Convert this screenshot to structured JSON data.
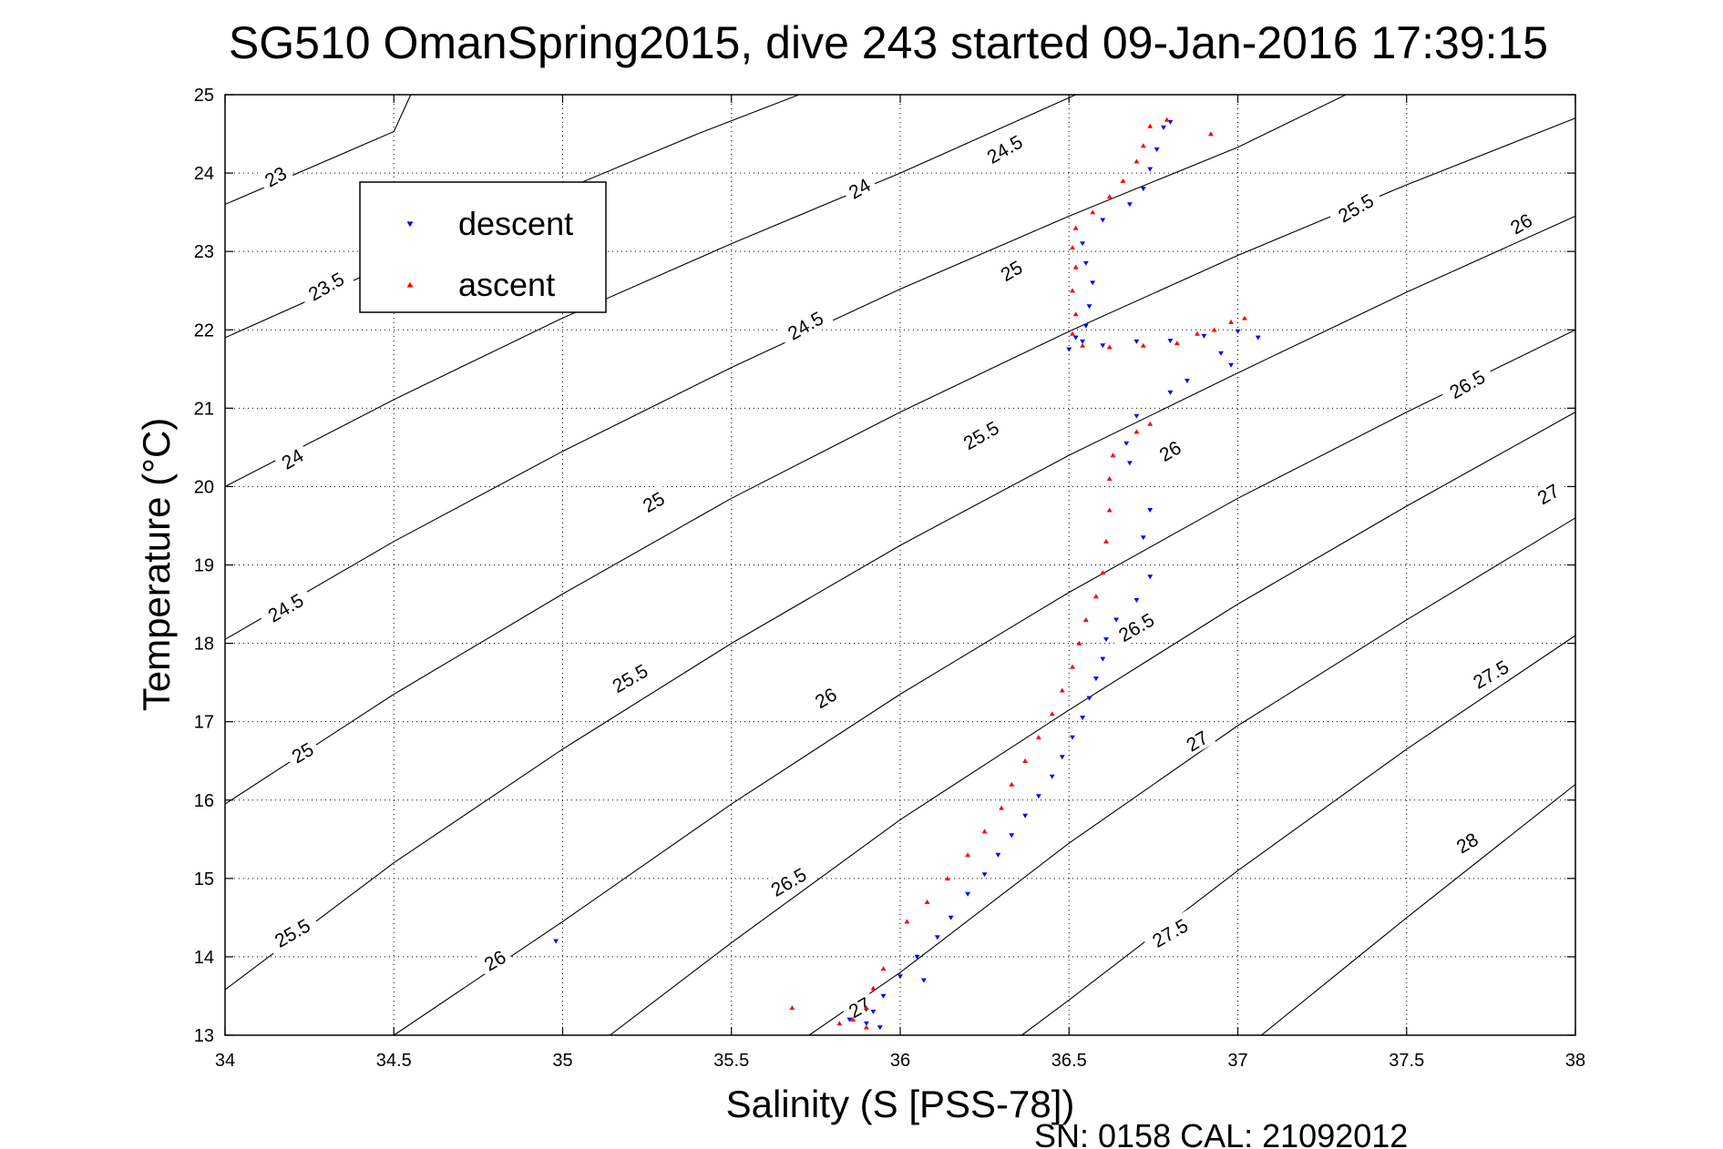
{
  "chart_data": {
    "type": "scatter",
    "title": "SG510 OmanSpring2015, dive 243 started 09-Jan-2016 17:39:15",
    "xlabel": "Salinity (S [PSS-78])",
    "ylabel": "Temperature (°C)",
    "footer": "SN: 0158  CAL: 21092012",
    "xlim": [
      34,
      38
    ],
    "ylim": [
      13,
      25
    ],
    "xticks": [
      34,
      34.5,
      35,
      35.5,
      36,
      36.5,
      37,
      37.5,
      38
    ],
    "xtick_labels": [
      "34",
      "34.5",
      "35",
      "35.5",
      "36",
      "36.5",
      "37",
      "37.5",
      "38"
    ],
    "yticks": [
      13,
      14,
      15,
      16,
      17,
      18,
      19,
      20,
      21,
      22,
      23,
      24,
      25
    ],
    "ytick_labels": [
      "13",
      "14",
      "15",
      "16",
      "17",
      "18",
      "19",
      "20",
      "21",
      "22",
      "23",
      "24",
      "25"
    ],
    "grid": true,
    "legend_position": "top-left",
    "legend": [
      {
        "label": "descent",
        "color": "#0000ff",
        "marker": "triangle-down"
      },
      {
        "label": "ascent",
        "color": "#ff0000",
        "marker": "triangle-up"
      }
    ],
    "density_contours": {
      "color": "#000000",
      "levels": [
        {
          "level": "23",
          "points": [
            [
              34.0,
              23.6
            ],
            [
              34.5,
              24.53
            ],
            [
              34.55,
              25.0
            ]
          ]
        },
        {
          "level": "23.5",
          "points": [
            [
              34.0,
              21.9
            ],
            [
              34.5,
              22.86
            ],
            [
              35.0,
              23.78
            ],
            [
              35.4,
              24.5
            ],
            [
              35.7,
              25.0
            ]
          ]
        },
        {
          "level": "24",
          "points": [
            [
              34.0,
              20.0
            ],
            [
              34.5,
              21.11
            ],
            [
              35.0,
              22.15
            ],
            [
              35.5,
              23.1
            ],
            [
              36.0,
              24.0
            ],
            [
              36.52,
              25.0
            ]
          ]
        },
        {
          "level": "24.5",
          "points": [
            [
              34.0,
              18.05
            ],
            [
              34.5,
              19.3
            ],
            [
              35.0,
              20.45
            ],
            [
              35.5,
              21.52
            ],
            [
              36.0,
              22.52
            ],
            [
              36.5,
              23.45
            ],
            [
              37.0,
              24.33
            ],
            [
              37.32,
              25.0
            ]
          ]
        },
        {
          "level": "25",
          "points": [
            [
              34.0,
              15.95
            ],
            [
              34.5,
              17.35
            ],
            [
              35.0,
              18.63
            ],
            [
              35.5,
              19.85
            ],
            [
              36.0,
              20.95
            ],
            [
              36.5,
              21.98
            ],
            [
              37.0,
              22.95
            ],
            [
              37.5,
              23.85
            ],
            [
              38.0,
              24.7
            ]
          ]
        },
        {
          "level": "25.5",
          "points": [
            [
              34.0,
              13.58
            ],
            [
              34.5,
              15.2
            ],
            [
              35.0,
              16.65
            ],
            [
              35.5,
              18.0
            ],
            [
              36.0,
              19.25
            ],
            [
              36.5,
              20.4
            ],
            [
              37.0,
              21.45
            ],
            [
              37.5,
              22.48
            ],
            [
              38.0,
              23.45
            ]
          ]
        },
        {
          "level": "26",
          "points": [
            [
              34.5,
              13.0
            ],
            [
              35.0,
              14.45
            ],
            [
              35.5,
              15.95
            ],
            [
              36.0,
              17.35
            ],
            [
              36.5,
              18.65
            ],
            [
              37.0,
              19.85
            ],
            [
              37.5,
              20.95
            ],
            [
              38.0,
              22.0
            ]
          ]
        },
        {
          "level": "26.5",
          "points": [
            [
              35.14,
              13.0
            ],
            [
              35.5,
              14.18
            ],
            [
              36.0,
              15.75
            ],
            [
              36.5,
              17.15
            ],
            [
              37.0,
              18.5
            ],
            [
              37.5,
              19.75
            ],
            [
              38.0,
              20.95
            ]
          ]
        },
        {
          "level": "27",
          "points": [
            [
              35.73,
              13.0
            ],
            [
              36.0,
              13.8
            ],
            [
              36.5,
              15.45
            ],
            [
              37.0,
              16.95
            ],
            [
              37.5,
              18.3
            ],
            [
              38.0,
              19.6
            ]
          ]
        },
        {
          "level": "27.5",
          "points": [
            [
              36.36,
              13.0
            ],
            [
              36.5,
              13.45
            ],
            [
              37.0,
              15.1
            ],
            [
              37.5,
              16.65
            ],
            [
              38.0,
              18.1
            ]
          ]
        },
        {
          "level": "28",
          "points": [
            [
              37.07,
              13.0
            ],
            [
              37.5,
              14.5
            ],
            [
              38.0,
              16.2
            ]
          ]
        }
      ],
      "labels": [
        {
          "text": "23",
          "x": 34.15,
          "y": 23.95,
          "angle": -30
        },
        {
          "text": "23.5",
          "x": 34.3,
          "y": 22.55,
          "angle": -30
        },
        {
          "text": "24",
          "x": 34.2,
          "y": 20.35,
          "angle": -30
        },
        {
          "text": "24.5",
          "x": 34.18,
          "y": 18.45,
          "angle": -30
        },
        {
          "text": "25",
          "x": 34.23,
          "y": 16.6,
          "angle": -30
        },
        {
          "text": "25.5",
          "x": 34.2,
          "y": 14.3,
          "angle": -30
        },
        {
          "text": "24",
          "x": 35.88,
          "y": 23.8,
          "angle": -30
        },
        {
          "text": "24.5",
          "x": 35.72,
          "y": 22.05,
          "angle": -30
        },
        {
          "text": "25",
          "x": 35.27,
          "y": 19.8,
          "angle": -30
        },
        {
          "text": "25.5",
          "x": 35.2,
          "y": 17.55,
          "angle": -30
        },
        {
          "text": "26",
          "x": 34.8,
          "y": 13.95,
          "angle": -30
        },
        {
          "text": "24.5",
          "x": 36.31,
          "y": 24.3,
          "angle": -30
        },
        {
          "text": "25",
          "x": 36.33,
          "y": 22.75,
          "angle": -30
        },
        {
          "text": "25.5",
          "x": 36.24,
          "y": 20.65,
          "angle": -30
        },
        {
          "text": "26",
          "x": 35.78,
          "y": 17.3,
          "angle": -30
        },
        {
          "text": "26.5",
          "x": 35.67,
          "y": 14.95,
          "angle": -30
        },
        {
          "text": "27",
          "x": 35.88,
          "y": 13.35,
          "angle": -30
        },
        {
          "text": "25.5",
          "x": 37.35,
          "y": 23.55,
          "angle": -30
        },
        {
          "text": "26",
          "x": 36.8,
          "y": 20.45,
          "angle": -30
        },
        {
          "text": "26.5",
          "x": 36.7,
          "y": 18.2,
          "angle": -30
        },
        {
          "text": "27",
          "x": 36.88,
          "y": 16.75,
          "angle": -30
        },
        {
          "text": "27.5",
          "x": 36.8,
          "y": 14.3,
          "angle": -30
        },
        {
          "text": "26",
          "x": 37.84,
          "y": 23.35,
          "angle": -30
        },
        {
          "text": "26.5",
          "x": 37.68,
          "y": 21.3,
          "angle": -30
        },
        {
          "text": "27",
          "x": 37.92,
          "y": 19.9,
          "angle": -30
        },
        {
          "text": "27.5",
          "x": 37.75,
          "y": 17.6,
          "angle": -30
        },
        {
          "text": "28",
          "x": 37.68,
          "y": 15.45,
          "angle": -30
        }
      ]
    },
    "series": [
      {
        "name": "descent",
        "color": "#0000ff",
        "marker": "triangle-down",
        "points": [
          [
            36.8,
            24.65
          ],
          [
            36.78,
            24.58
          ],
          [
            36.76,
            24.3
          ],
          [
            36.74,
            24.05
          ],
          [
            36.72,
            23.8
          ],
          [
            36.68,
            23.6
          ],
          [
            36.6,
            23.4
          ],
          [
            36.54,
            23.1
          ],
          [
            36.55,
            22.85
          ],
          [
            36.57,
            22.6
          ],
          [
            36.56,
            22.3
          ],
          [
            36.55,
            22.05
          ],
          [
            36.54,
            21.85
          ],
          [
            36.52,
            21.9
          ],
          [
            36.5,
            21.75
          ],
          [
            36.6,
            21.8
          ],
          [
            36.7,
            21.85
          ],
          [
            36.8,
            21.86
          ],
          [
            36.9,
            21.92
          ],
          [
            37.0,
            21.98
          ],
          [
            37.06,
            21.9
          ],
          [
            36.95,
            21.7
          ],
          [
            36.98,
            21.55
          ],
          [
            36.85,
            21.35
          ],
          [
            36.8,
            21.2
          ],
          [
            36.7,
            20.9
          ],
          [
            36.67,
            20.55
          ],
          [
            36.68,
            20.3
          ],
          [
            36.74,
            19.7
          ],
          [
            36.72,
            19.35
          ],
          [
            36.74,
            18.85
          ],
          [
            36.7,
            18.55
          ],
          [
            36.64,
            18.3
          ],
          [
            36.61,
            18.05
          ],
          [
            36.6,
            17.8
          ],
          [
            36.58,
            17.55
          ],
          [
            36.56,
            17.3
          ],
          [
            36.54,
            17.05
          ],
          [
            36.51,
            16.8
          ],
          [
            36.48,
            16.55
          ],
          [
            36.45,
            16.3
          ],
          [
            36.41,
            16.05
          ],
          [
            36.37,
            15.8
          ],
          [
            36.33,
            15.55
          ],
          [
            36.29,
            15.3
          ],
          [
            36.25,
            15.05
          ],
          [
            36.2,
            14.8
          ],
          [
            36.15,
            14.5
          ],
          [
            36.11,
            14.25
          ],
          [
            36.05,
            14.0
          ],
          [
            36.0,
            13.75
          ],
          [
            35.95,
            13.5
          ],
          [
            35.92,
            13.3
          ],
          [
            35.9,
            13.15
          ],
          [
            35.85,
            13.2
          ],
          [
            35.94,
            13.1
          ],
          [
            36.07,
            13.7
          ],
          [
            34.98,
            14.2
          ]
        ]
      },
      {
        "name": "ascent",
        "color": "#ff0000",
        "marker": "triangle-up",
        "points": [
          [
            36.79,
            24.68
          ],
          [
            36.74,
            24.6
          ],
          [
            36.72,
            24.35
          ],
          [
            36.7,
            24.15
          ],
          [
            36.66,
            23.9
          ],
          [
            36.62,
            23.7
          ],
          [
            36.57,
            23.5
          ],
          [
            36.52,
            23.3
          ],
          [
            36.51,
            23.05
          ],
          [
            36.52,
            22.8
          ],
          [
            36.51,
            22.5
          ],
          [
            36.52,
            22.2
          ],
          [
            36.51,
            21.95
          ],
          [
            36.54,
            21.8
          ],
          [
            36.62,
            21.78
          ],
          [
            36.72,
            21.8
          ],
          [
            36.82,
            21.83
          ],
          [
            36.88,
            21.95
          ],
          [
            36.93,
            22.0
          ],
          [
            36.98,
            22.1
          ],
          [
            37.02,
            22.15
          ],
          [
            36.92,
            24.5
          ],
          [
            36.74,
            20.8
          ],
          [
            36.7,
            20.7
          ],
          [
            36.63,
            20.4
          ],
          [
            36.62,
            20.1
          ],
          [
            36.62,
            19.7
          ],
          [
            36.61,
            19.3
          ],
          [
            36.6,
            18.9
          ],
          [
            36.58,
            18.6
          ],
          [
            36.55,
            18.3
          ],
          [
            36.53,
            18.0
          ],
          [
            36.51,
            17.7
          ],
          [
            36.48,
            17.4
          ],
          [
            36.45,
            17.1
          ],
          [
            36.41,
            16.8
          ],
          [
            36.37,
            16.5
          ],
          [
            36.33,
            16.2
          ],
          [
            36.3,
            15.9
          ],
          [
            36.25,
            15.6
          ],
          [
            36.2,
            15.3
          ],
          [
            36.14,
            15.0
          ],
          [
            36.08,
            14.7
          ],
          [
            36.02,
            14.45
          ],
          [
            35.95,
            13.85
          ],
          [
            35.92,
            13.6
          ],
          [
            35.9,
            13.35
          ],
          [
            35.86,
            13.2
          ],
          [
            35.82,
            13.15
          ],
          [
            35.9,
            13.1
          ],
          [
            35.68,
            13.35
          ]
        ]
      }
    ]
  }
}
